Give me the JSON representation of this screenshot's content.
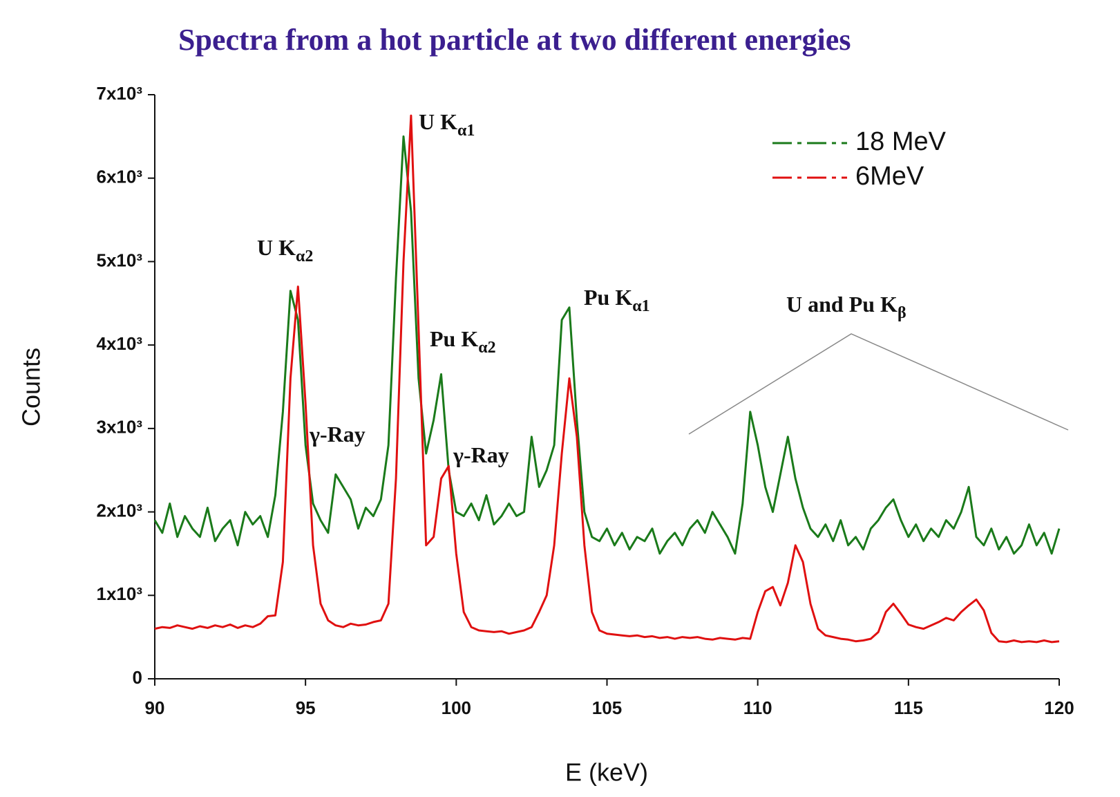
{
  "chart_data": {
    "type": "line",
    "title": "Spectra from a hot particle at two different energies",
    "xlabel": "E (keV)",
    "ylabel": "Counts",
    "xlim": [
      90,
      120
    ],
    "xticks": [
      90,
      95,
      100,
      105,
      110,
      115,
      120
    ],
    "ylim": [
      0,
      7000
    ],
    "yticks": [
      0,
      {
        "value": 1000,
        "label": "1x10³"
      },
      {
        "value": 2000,
        "label": "2x10³"
      },
      {
        "value": 3000,
        "label": "3x10³"
      },
      {
        "value": 4000,
        "label": "4x10³"
      },
      {
        "value": 5000,
        "label": "5x10³"
      },
      {
        "value": 6000,
        "label": "6x10³"
      },
      {
        "value": 7000,
        "label": "7x10³"
      }
    ],
    "grid": false,
    "legend": "top-right",
    "x": [
      90,
      90.25,
      90.5,
      90.75,
      91,
      91.25,
      91.5,
      91.75,
      92,
      92.25,
      92.5,
      92.75,
      93,
      93.25,
      93.5,
      93.75,
      94,
      94.25,
      94.5,
      94.75,
      95,
      95.25,
      95.5,
      95.75,
      96,
      96.25,
      96.5,
      96.75,
      97,
      97.25,
      97.5,
      97.75,
      98,
      98.25,
      98.5,
      98.75,
      99,
      99.25,
      99.5,
      99.75,
      100,
      100.25,
      100.5,
      100.75,
      101,
      101.25,
      101.5,
      101.75,
      102,
      102.25,
      102.5,
      102.75,
      103,
      103.25,
      103.5,
      103.75,
      104,
      104.25,
      104.5,
      104.75,
      105,
      105.25,
      105.5,
      105.75,
      106,
      106.25,
      106.5,
      106.75,
      107,
      107.25,
      107.5,
      107.75,
      108,
      108.25,
      108.5,
      108.75,
      109,
      109.25,
      109.5,
      109.75,
      110,
      110.25,
      110.5,
      110.75,
      111,
      111.25,
      111.5,
      111.75,
      112,
      112.25,
      112.5,
      112.75,
      113,
      113.25,
      113.5,
      113.75,
      114,
      114.25,
      114.5,
      114.75,
      115,
      115.25,
      115.5,
      115.75,
      116,
      116.25,
      116.5,
      116.75,
      117,
      117.25,
      117.5,
      117.75,
      118,
      118.25,
      118.5,
      118.75,
      119,
      119.25,
      119.5,
      119.75,
      120
    ],
    "series": [
      {
        "name": "18 MeV",
        "color": "#1a7a1a",
        "values": [
          1900,
          1750,
          2100,
          1700,
          1950,
          1800,
          1700,
          2050,
          1650,
          1800,
          1900,
          1600,
          2000,
          1850,
          1950,
          1700,
          2200,
          3200,
          4650,
          4300,
          2800,
          2100,
          1900,
          1750,
          2450,
          2300,
          2150,
          1800,
          2050,
          1950,
          2150,
          2800,
          4800,
          6500,
          5600,
          3600,
          2700,
          3100,
          3650,
          2500,
          2000,
          1950,
          2100,
          1900,
          2200,
          1850,
          1950,
          2100,
          1950,
          2000,
          2900,
          2300,
          2500,
          2800,
          4300,
          4450,
          3100,
          2000,
          1700,
          1650,
          1800,
          1600,
          1750,
          1550,
          1700,
          1650,
          1800,
          1500,
          1650,
          1750,
          1600,
          1800,
          1900,
          1750,
          2000,
          1850,
          1700,
          1500,
          2100,
          3200,
          2800,
          2300,
          2000,
          2450,
          2900,
          2400,
          2050,
          1800,
          1700,
          1850,
          1650,
          1900,
          1600,
          1700,
          1550,
          1800,
          1900,
          2050,
          2150,
          1900,
          1700,
          1850,
          1650,
          1800,
          1700,
          1900,
          1800,
          2000,
          2300,
          1700,
          1600,
          1800,
          1550,
          1700,
          1500,
          1600,
          1850,
          1600,
          1750,
          1500,
          1800
        ]
      },
      {
        "name": "6MeV",
        "color": "#e01010",
        "values": [
          600,
          620,
          610,
          640,
          620,
          600,
          630,
          610,
          640,
          620,
          650,
          610,
          640,
          620,
          660,
          750,
          760,
          1400,
          3600,
          4700,
          3300,
          1600,
          900,
          700,
          640,
          620,
          660,
          640,
          650,
          680,
          700,
          900,
          2400,
          5000,
          6750,
          4200,
          1600,
          1700,
          2400,
          2550,
          1500,
          800,
          620,
          580,
          570,
          560,
          570,
          540,
          560,
          580,
          620,
          800,
          1000,
          1600,
          2700,
          3600,
          2900,
          1600,
          800,
          580,
          540,
          530,
          520,
          510,
          520,
          500,
          510,
          490,
          500,
          480,
          500,
          490,
          500,
          480,
          470,
          490,
          480,
          470,
          490,
          480,
          800,
          1050,
          1100,
          880,
          1150,
          1600,
          1400,
          900,
          600,
          520,
          500,
          480,
          470,
          450,
          460,
          480,
          560,
          800,
          900,
          780,
          650,
          620,
          600,
          640,
          680,
          730,
          700,
          800,
          880,
          950,
          820,
          550,
          450,
          440,
          460,
          440,
          450,
          440,
          460,
          440,
          450
        ]
      }
    ],
    "annotations": [
      {
        "text": "U K",
        "sub": "α2"
      },
      {
        "text": "U K",
        "sub": "α1"
      },
      {
        "text": "Pu K",
        "sub": "α2"
      },
      {
        "text": "Pu K",
        "sub": "α1"
      },
      {
        "text": "U and Pu K",
        "sub": "β"
      },
      {
        "text": "γ-Ray"
      },
      {
        "text": "γ-Ray"
      }
    ]
  }
}
